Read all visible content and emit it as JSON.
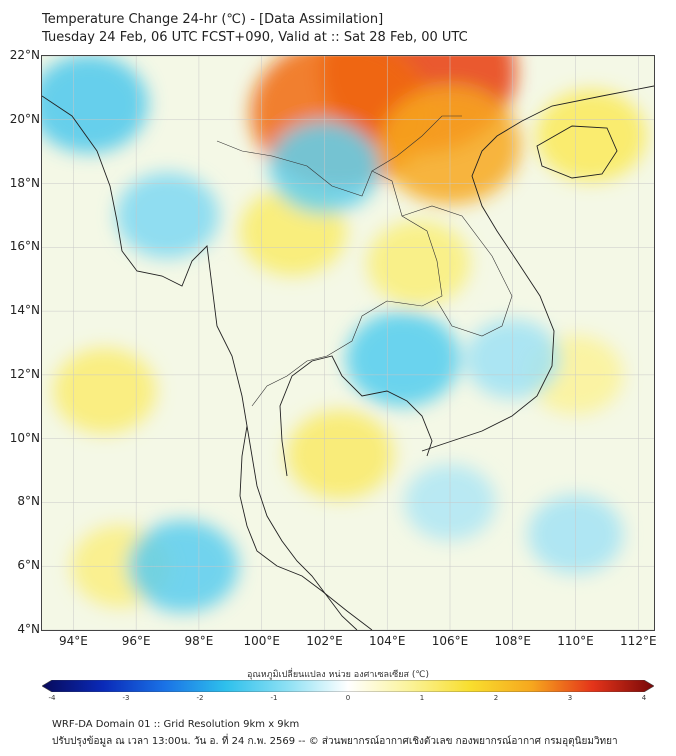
{
  "header": {
    "title_line1": "Temperature Change 24-hr (℃) - [Data Assimilation]",
    "title_line2": "Tuesday 24 Feb, 06 UTC FCST+090, Valid at :: Sat 28 Feb, 00 UTC"
  },
  "map": {
    "lat_labels": [
      "22°N",
      "20°N",
      "18°N",
      "16°N",
      "14°N",
      "12°N",
      "10°N",
      "8°N",
      "6°N",
      "4°N"
    ],
    "lon_labels": [
      "94°E",
      "96°E",
      "98°E",
      "100°E",
      "102°E",
      "104°E",
      "106°E",
      "108°E",
      "110°E",
      "112°E"
    ],
    "lat_range": [
      4,
      22
    ],
    "lon_range": [
      93,
      112.5
    ],
    "background_color": "#f4f8e6",
    "anomaly_fields": [
      {
        "name": "strong-warm-north",
        "lon": 105.0,
        "lat": 21.5,
        "value": 3.2,
        "color": "#e83c10"
      },
      {
        "name": "warm-laos-north",
        "lon": 102.5,
        "lat": 20.2,
        "value": 2.8,
        "color": "#f06a12"
      },
      {
        "name": "warm-vietnam-north",
        "lon": 106.0,
        "lat": 19.2,
        "value": 1.8,
        "color": "#f7a81e"
      },
      {
        "name": "warm-hainan",
        "lon": 110.5,
        "lat": 19.5,
        "value": 1.0,
        "color": "#faea5a"
      },
      {
        "name": "warm-thailand-central",
        "lon": 101.0,
        "lat": 16.5,
        "value": 0.9,
        "color": "#f9ec6a"
      },
      {
        "name": "warm-laos-south",
        "lon": 105.0,
        "lat": 15.5,
        "value": 0.8,
        "color": "#f9ee78"
      },
      {
        "name": "warm-andaman-west",
        "lon": 95.0,
        "lat": 11.5,
        "value": 0.8,
        "color": "#faec70"
      },
      {
        "name": "warm-gulf-east",
        "lon": 102.5,
        "lat": 9.5,
        "value": 0.9,
        "color": "#f9ea66"
      },
      {
        "name": "warm-south-west",
        "lon": 95.5,
        "lat": 6.0,
        "value": 0.7,
        "color": "#faef80"
      },
      {
        "name": "warm-sea-east",
        "lon": 110.0,
        "lat": 12.0,
        "value": 0.6,
        "color": "#fbf296"
      },
      {
        "name": "cool-myanmar-west",
        "lon": 94.5,
        "lat": 20.5,
        "value": -1.2,
        "color": "#4cc8ec"
      },
      {
        "name": "cool-myanmar-central",
        "lon": 97.0,
        "lat": 17.0,
        "value": -0.8,
        "color": "#7ed8f2"
      },
      {
        "name": "cool-nan",
        "lon": 102.0,
        "lat": 18.5,
        "value": -1.0,
        "color": "#5fd0ee"
      },
      {
        "name": "cool-cambodia",
        "lon": 104.5,
        "lat": 12.5,
        "value": -1.1,
        "color": "#52cdee"
      },
      {
        "name": "cool-vietnam-coast",
        "lon": 108.0,
        "lat": 12.5,
        "value": -0.6,
        "color": "#9ee2f4"
      },
      {
        "name": "cool-andaman-south",
        "lon": 97.5,
        "lat": 6.0,
        "value": -1.0,
        "color": "#5acdee"
      },
      {
        "name": "cool-sea-south",
        "lon": 106.0,
        "lat": 8.0,
        "value": -0.5,
        "color": "#aee6f5"
      },
      {
        "name": "cool-sea-far-south",
        "lon": 110.0,
        "lat": 7.0,
        "value": -0.6,
        "color": "#a2e3f4"
      }
    ]
  },
  "colorbar": {
    "label": "อุณหภูมิเปลี่ยนแปลง หน่วย องศาเซลเซียส (℃)",
    "ticks": [
      "-4",
      "-3",
      "-2",
      "-1",
      "0",
      "1",
      "2",
      "3",
      "4"
    ],
    "range": [
      -4,
      4
    ],
    "stops": [
      "#080a5a",
      "#0a2ab8",
      "#1a72e6",
      "#2ec0ec",
      "#8ce0f4",
      "#ffffff",
      "#fbf39a",
      "#f8de2e",
      "#f6a71e",
      "#e4341a",
      "#780808"
    ]
  },
  "footer": {
    "line1": "WRF-DA Domain 01 :: Grid Resolution 9km x 9km",
    "line2": "ปรับปรุงข้อมูล ณ เวลา 13:00น. วัน อ. ที่ 24 ก.พ. 2569 -- © ส่วนพยากรณ์อากาศเชิงตัวเลข กองพยากรณ์อากาศ กรมอุตุนิยมวิทยา"
  }
}
